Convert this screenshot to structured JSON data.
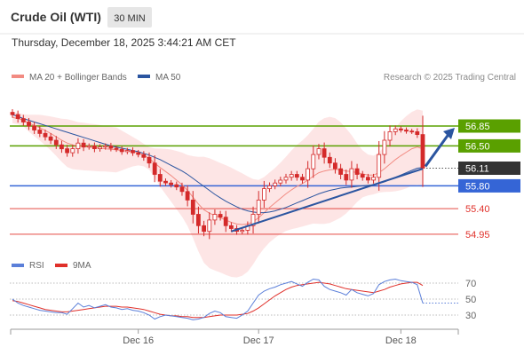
{
  "header": {
    "title": "Crude Oil (WTI)",
    "interval": "30 MIN",
    "timestamp": "Thursday, December 18, 2025 3:44:21 AM CET",
    "copyright": "Research © 2025 Trading Central"
  },
  "colors": {
    "resistance": "#5aa000",
    "current": "#333333",
    "support_line": "#3565d6",
    "support_red": "#e0302a",
    "ma20": "#f28b82",
    "ma50": "#2b55a0",
    "bollinger_fill": "#fde2e2",
    "rsi": "#5b7fd9",
    "rsi_ma": "#e0302a",
    "candle": "#d42a2a"
  },
  "chart_data": [
    {
      "type": "candlestick",
      "title": "Crude Oil (WTI)",
      "legend": [
        {
          "name": "MA 20 + Bollinger Bands",
          "color": "#f28b82"
        },
        {
          "name": "MA 50",
          "color": "#2b55a0"
        }
      ],
      "x_ticks": [
        "Dec 16",
        "Dec 17",
        "Dec 18"
      ],
      "ylim": [
        54.7,
        57.27
      ],
      "levels": [
        {
          "label": "56.85",
          "value": 56.85,
          "kind": "resistance",
          "color": "#5aa000",
          "filled": true
        },
        {
          "label": "56.50",
          "value": 56.5,
          "kind": "resistance",
          "color": "#5aa000",
          "filled": true
        },
        {
          "label": "56.11",
          "value": 56.11,
          "kind": "current",
          "color": "#333333",
          "filled": true
        },
        {
          "label": "55.80",
          "value": 55.8,
          "kind": "support",
          "color": "#3565d6",
          "filled": true
        },
        {
          "label": "55.40",
          "value": 55.4,
          "kind": "support",
          "color": "#e0302a",
          "filled": false
        },
        {
          "label": "54.95",
          "value": 54.95,
          "kind": "support",
          "color": "#e0302a",
          "filled": false
        }
      ],
      "close": [
        57.05,
        56.98,
        56.92,
        56.85,
        56.78,
        56.72,
        56.66,
        56.6,
        56.52,
        56.45,
        56.38,
        56.45,
        56.55,
        56.48,
        56.5,
        56.45,
        56.48,
        56.5,
        56.46,
        56.44,
        56.4,
        56.42,
        56.38,
        56.35,
        56.3,
        56.2,
        56.0,
        55.88,
        55.85,
        55.82,
        55.78,
        55.7,
        55.55,
        55.3,
        55.1,
        55.0,
        55.2,
        55.3,
        55.25,
        55.1,
        55.05,
        55.0,
        55.02,
        55.1,
        55.3,
        55.55,
        55.75,
        55.8,
        55.85,
        55.9,
        55.95,
        56.0,
        55.95,
        55.9,
        56.1,
        56.35,
        56.45,
        56.3,
        56.2,
        56.1,
        56.0,
        55.9,
        56.1,
        56.0,
        55.95,
        55.9,
        55.95,
        56.35,
        56.6,
        56.75,
        56.8,
        56.78,
        56.76,
        56.75,
        56.7,
        56.11
      ],
      "ma20": [
        57.0,
        56.98,
        56.95,
        56.9,
        56.86,
        56.82,
        56.77,
        56.72,
        56.66,
        56.6,
        56.55,
        56.52,
        56.5,
        56.49,
        56.48,
        56.47,
        56.46,
        56.45,
        56.44,
        56.43,
        56.42,
        56.41,
        56.4,
        56.38,
        56.34,
        56.28,
        56.2,
        56.12,
        56.05,
        55.98,
        55.9,
        55.82,
        55.72,
        55.6,
        55.48,
        55.38,
        55.32,
        55.28,
        55.24,
        55.2,
        55.16,
        55.13,
        55.12,
        55.13,
        55.17,
        55.24,
        55.33,
        55.42,
        55.5,
        55.58,
        55.66,
        55.73,
        55.79,
        55.84,
        55.9,
        55.97,
        56.03,
        56.06,
        56.08,
        56.09,
        56.08,
        56.06,
        56.05,
        56.03,
        56.01,
        55.99,
        55.99,
        56.03,
        56.1,
        56.18,
        56.26,
        56.33,
        56.39,
        56.45,
        56.48,
        56.45
      ],
      "ma50": [
        57.05,
        57.02,
        56.98,
        56.95,
        56.92,
        56.89,
        56.86,
        56.83,
        56.8,
        56.77,
        56.74,
        56.71,
        56.68,
        56.65,
        56.62,
        56.59,
        56.56,
        56.53,
        56.5,
        56.48,
        56.46,
        56.44,
        56.42,
        56.4,
        56.37,
        56.34,
        56.3,
        56.26,
        56.21,
        56.16,
        56.11,
        56.06,
        56.0,
        55.93,
        55.86,
        55.79,
        55.72,
        55.65,
        55.59,
        55.53,
        55.48,
        55.43,
        55.39,
        55.36,
        55.34,
        55.33,
        55.33,
        55.34,
        55.36,
        55.39,
        55.42,
        55.46,
        55.5,
        55.54,
        55.58,
        55.62,
        55.66,
        55.69,
        55.72,
        55.74,
        55.76,
        55.77,
        55.78,
        55.79,
        55.8,
        55.81,
        55.82,
        55.84,
        55.87,
        55.91,
        55.95,
        55.99,
        56.03,
        56.07,
        56.11,
        56.12
      ]
    },
    {
      "type": "line",
      "legend": [
        {
          "name": "RSI",
          "color": "#5b7fd9"
        },
        {
          "name": "9MA",
          "color": "#e0302a"
        }
      ],
      "y_ticks": [
        30,
        50,
        70
      ],
      "ylim": [
        20,
        80
      ],
      "rsi": [
        50,
        45,
        42,
        40,
        38,
        36,
        35,
        34,
        33,
        33,
        31,
        38,
        45,
        40,
        42,
        39,
        41,
        43,
        40,
        39,
        37,
        38,
        36,
        35,
        33,
        30,
        25,
        28,
        30,
        29,
        28,
        27,
        26,
        24,
        25,
        27,
        32,
        35,
        33,
        28,
        27,
        26,
        30,
        35,
        45,
        55,
        60,
        63,
        65,
        68,
        70,
        72,
        69,
        66,
        71,
        75,
        74,
        66,
        62,
        60,
        58,
        55,
        62,
        58,
        56,
        54,
        57,
        68,
        72,
        74,
        75,
        73,
        72,
        71,
        68,
        45
      ],
      "rsi_ma": [
        48,
        47,
        45,
        43,
        41,
        39,
        37,
        36,
        35,
        34,
        34,
        35,
        36,
        37,
        38,
        39,
        40,
        41,
        41,
        41,
        40,
        40,
        39,
        38,
        37,
        35,
        33,
        31,
        30,
        29,
        29,
        28,
        28,
        27,
        27,
        27,
        28,
        29,
        30,
        30,
        30,
        30,
        31,
        32,
        35,
        39,
        44,
        49,
        54,
        58,
        62,
        65,
        67,
        68,
        69,
        70,
        71,
        70,
        69,
        67,
        65,
        63,
        62,
        61,
        60,
        59,
        58,
        60,
        62,
        65,
        67,
        69,
        70,
        71,
        71,
        67
      ]
    }
  ]
}
